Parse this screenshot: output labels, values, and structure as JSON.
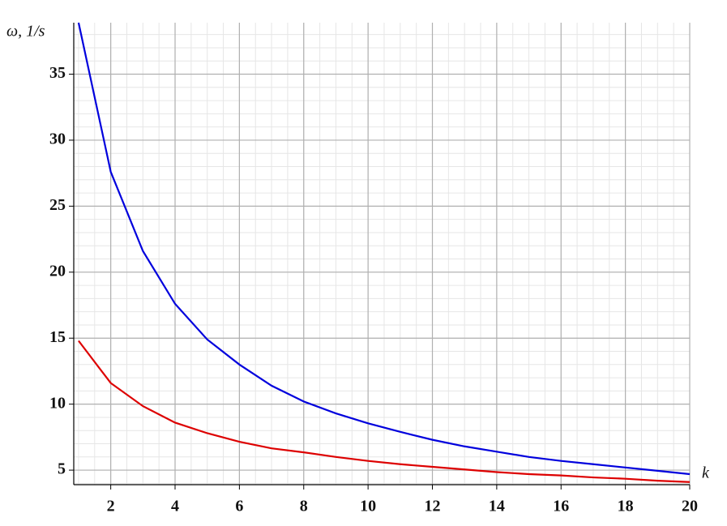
{
  "chart_data": {
    "type": "line",
    "x_label": "k",
    "y_label": "ω, 1/s",
    "x": [
      1,
      2,
      3,
      4,
      5,
      6,
      7,
      8,
      9,
      10,
      11,
      12,
      13,
      14,
      15,
      16,
      17,
      18,
      19,
      20
    ],
    "series": [
      {
        "color": "#0000dd",
        "values": [
          38.9,
          27.6,
          21.6,
          17.6,
          14.9,
          13.0,
          11.4,
          10.2,
          9.3,
          8.55,
          7.9,
          7.3,
          6.8,
          6.4,
          6.0,
          5.7,
          5.45,
          5.2,
          4.95,
          4.7
        ]
      },
      {
        "color": "#dd0000",
        "values": [
          14.8,
          11.6,
          9.85,
          8.6,
          7.8,
          7.15,
          6.65,
          6.35,
          6.0,
          5.7,
          5.45,
          5.25,
          5.05,
          4.85,
          4.7,
          4.6,
          4.45,
          4.35,
          4.2,
          4.1
        ]
      }
    ],
    "xlim": [
      0.85,
      20
    ],
    "xticks": [
      2,
      4,
      6,
      8,
      10,
      12,
      14,
      16,
      18,
      20
    ],
    "ylim": [
      3.9,
      38.9
    ],
    "yticks": [
      5,
      10,
      15,
      20,
      25,
      30,
      35
    ],
    "grid": true
  }
}
